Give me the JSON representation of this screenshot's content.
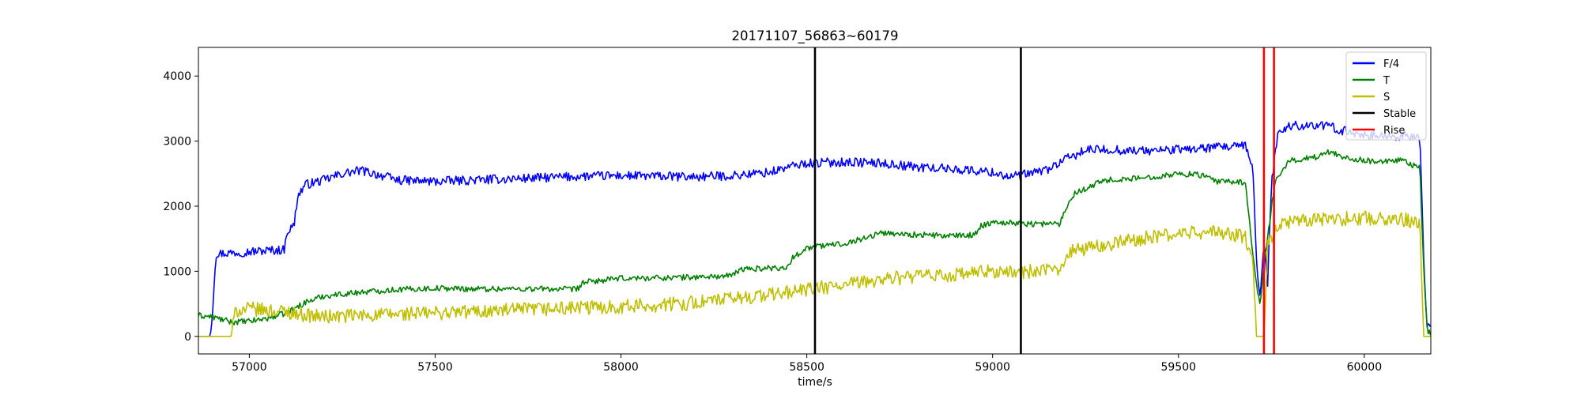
{
  "chart_data": {
    "type": "line",
    "title": "20171107_56863~60179",
    "xlabel": "time/s",
    "ylabel": "",
    "xlim": [
      56863,
      60179
    ],
    "ylim": [
      -270,
      4440
    ],
    "x_ticks": [
      57000,
      57500,
      58000,
      58500,
      59000,
      59500,
      60000
    ],
    "y_ticks": [
      0,
      1000,
      2000,
      3000,
      4000
    ],
    "grid": false,
    "legend_position": "top-right",
    "series": [
      {
        "name": "F/4",
        "color": "#0000ff",
        "noise": 70,
        "points": [
          [
            56863,
            0
          ],
          [
            56895,
            0
          ],
          [
            56900,
            300
          ],
          [
            56910,
            1270
          ],
          [
            56940,
            1280
          ],
          [
            57000,
            1300
          ],
          [
            57050,
            1320
          ],
          [
            57095,
            1330
          ],
          [
            57100,
            1600
          ],
          [
            57120,
            1700
          ],
          [
            57130,
            2150
          ],
          [
            57150,
            2330
          ],
          [
            57200,
            2400
          ],
          [
            57250,
            2500
          ],
          [
            57300,
            2550
          ],
          [
            57350,
            2480
          ],
          [
            57400,
            2400
          ],
          [
            57500,
            2380
          ],
          [
            57600,
            2400
          ],
          [
            57700,
            2420
          ],
          [
            57800,
            2440
          ],
          [
            57900,
            2460
          ],
          [
            58000,
            2470
          ],
          [
            58100,
            2460
          ],
          [
            58200,
            2450
          ],
          [
            58300,
            2470
          ],
          [
            58400,
            2520
          ],
          [
            58450,
            2600
          ],
          [
            58500,
            2660
          ],
          [
            58600,
            2680
          ],
          [
            58700,
            2660
          ],
          [
            58800,
            2600
          ],
          [
            58900,
            2570
          ],
          [
            59000,
            2520
          ],
          [
            59050,
            2450
          ],
          [
            59100,
            2500
          ],
          [
            59150,
            2570
          ],
          [
            59190,
            2700
          ],
          [
            59250,
            2860
          ],
          [
            59300,
            2870
          ],
          [
            59400,
            2850
          ],
          [
            59500,
            2870
          ],
          [
            59600,
            2900
          ],
          [
            59680,
            2920
          ],
          [
            59700,
            2600
          ],
          [
            59710,
            1200
          ],
          [
            59720,
            520
          ],
          [
            59730,
            1500
          ],
          [
            59740,
            800
          ],
          [
            59750,
            2300
          ],
          [
            59760,
            2850
          ],
          [
            59770,
            3150
          ],
          [
            59800,
            3230
          ],
          [
            59850,
            3250
          ],
          [
            59900,
            3230
          ],
          [
            59950,
            3150
          ],
          [
            60000,
            3100
          ],
          [
            60050,
            3070
          ],
          [
            60100,
            3080
          ],
          [
            60150,
            3050
          ],
          [
            60160,
            1200
          ],
          [
            60168,
            150
          ],
          [
            60179,
            100
          ]
        ]
      },
      {
        "name": "T",
        "color": "#008000",
        "noise": 45,
        "points": [
          [
            56863,
            320
          ],
          [
            56900,
            300
          ],
          [
            56950,
            220
          ],
          [
            57000,
            230
          ],
          [
            57050,
            280
          ],
          [
            57100,
            360
          ],
          [
            57150,
            520
          ],
          [
            57200,
            620
          ],
          [
            57300,
            680
          ],
          [
            57400,
            720
          ],
          [
            57500,
            740
          ],
          [
            57600,
            730
          ],
          [
            57700,
            730
          ],
          [
            57800,
            730
          ],
          [
            57880,
            720
          ],
          [
            57900,
            830
          ],
          [
            58000,
            890
          ],
          [
            58100,
            900
          ],
          [
            58200,
            910
          ],
          [
            58300,
            930
          ],
          [
            58320,
            1030
          ],
          [
            58400,
            1050
          ],
          [
            58450,
            1060
          ],
          [
            58460,
            1200
          ],
          [
            58500,
            1360
          ],
          [
            58600,
            1430
          ],
          [
            58650,
            1500
          ],
          [
            58700,
            1590
          ],
          [
            58800,
            1560
          ],
          [
            58900,
            1540
          ],
          [
            58950,
            1560
          ],
          [
            58970,
            1700
          ],
          [
            59000,
            1760
          ],
          [
            59100,
            1730
          ],
          [
            59180,
            1730
          ],
          [
            59200,
            2000
          ],
          [
            59220,
            2200
          ],
          [
            59300,
            2400
          ],
          [
            59400,
            2430
          ],
          [
            59500,
            2500
          ],
          [
            59560,
            2480
          ],
          [
            59600,
            2380
          ],
          [
            59680,
            2370
          ],
          [
            59690,
            1800
          ],
          [
            59710,
            800
          ],
          [
            59720,
            450
          ],
          [
            59730,
            1100
          ],
          [
            59740,
            1500
          ],
          [
            59760,
            2400
          ],
          [
            59800,
            2700
          ],
          [
            59850,
            2740
          ],
          [
            59880,
            2760
          ],
          [
            59900,
            2850
          ],
          [
            59950,
            2750
          ],
          [
            60000,
            2700
          ],
          [
            60050,
            2680
          ],
          [
            60100,
            2700
          ],
          [
            60150,
            2580
          ],
          [
            60160,
            1000
          ],
          [
            60170,
            80
          ],
          [
            60179,
            60
          ]
        ]
      },
      {
        "name": "S",
        "color": "#bfbf00",
        "noise": 110,
        "points": [
          [
            56863,
            0
          ],
          [
            56900,
            0
          ],
          [
            56950,
            0
          ],
          [
            56960,
            300
          ],
          [
            56965,
            400
          ],
          [
            57000,
            420
          ],
          [
            57050,
            400
          ],
          [
            57100,
            380
          ],
          [
            57150,
            330
          ],
          [
            57200,
            300
          ],
          [
            57300,
            320
          ],
          [
            57400,
            340
          ],
          [
            57500,
            360
          ],
          [
            57600,
            380
          ],
          [
            57700,
            400
          ],
          [
            57800,
            420
          ],
          [
            57900,
            440
          ],
          [
            58000,
            460
          ],
          [
            58100,
            480
          ],
          [
            58200,
            520
          ],
          [
            58300,
            580
          ],
          [
            58400,
            640
          ],
          [
            58500,
            720
          ],
          [
            58600,
            780
          ],
          [
            58700,
            880
          ],
          [
            58800,
            920
          ],
          [
            58900,
            940
          ],
          [
            59000,
            1000
          ],
          [
            59050,
            980
          ],
          [
            59100,
            1000
          ],
          [
            59180,
            1010
          ],
          [
            59200,
            1300
          ],
          [
            59300,
            1400
          ],
          [
            59400,
            1500
          ],
          [
            59500,
            1580
          ],
          [
            59600,
            1600
          ],
          [
            59680,
            1530
          ],
          [
            59700,
            1100
          ],
          [
            59710,
            0
          ],
          [
            59730,
            0
          ],
          [
            59740,
            1400
          ],
          [
            59760,
            1650
          ],
          [
            59800,
            1760
          ],
          [
            59900,
            1800
          ],
          [
            60000,
            1820
          ],
          [
            60100,
            1800
          ],
          [
            60150,
            1750
          ],
          [
            60160,
            0
          ],
          [
            60179,
            0
          ]
        ]
      }
    ],
    "vlines": [
      {
        "label": "Stable",
        "color": "#000000",
        "x": [
          58522,
          59076
        ]
      },
      {
        "label": "Rise",
        "color": "#ff0000",
        "x": [
          59730,
          59757
        ]
      }
    ],
    "legend": [
      {
        "label": "F/4",
        "color": "#0000ff"
      },
      {
        "label": "T",
        "color": "#008000"
      },
      {
        "label": "S",
        "color": "#bfbf00"
      },
      {
        "label": "Stable",
        "color": "#000000"
      },
      {
        "label": "Rise",
        "color": "#ff0000"
      }
    ]
  }
}
